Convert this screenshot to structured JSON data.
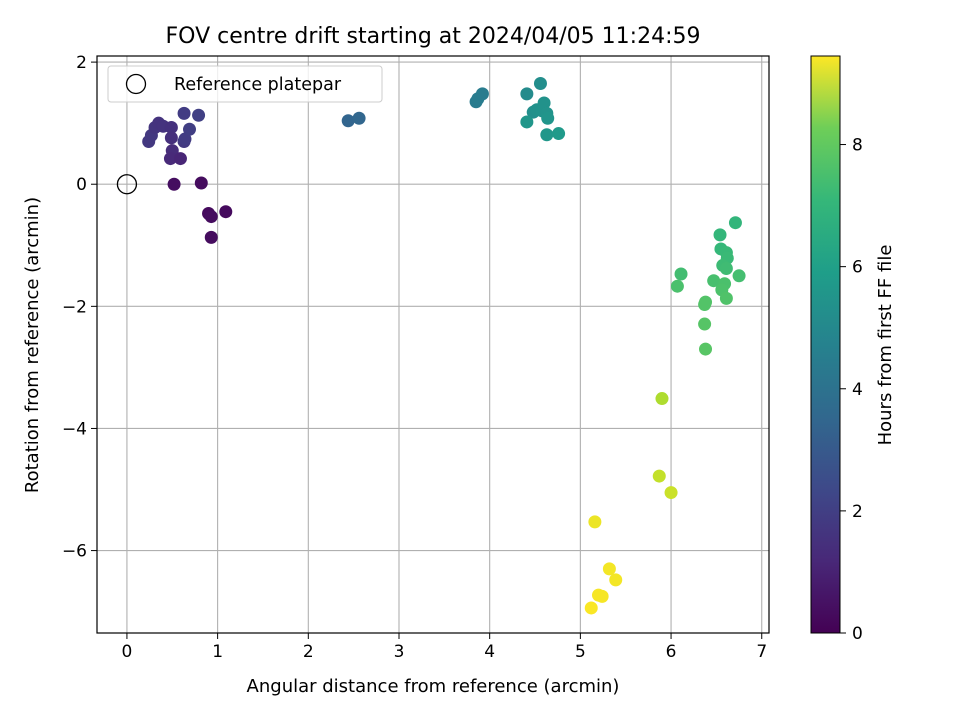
{
  "chart_data": {
    "type": "scatter",
    "title": "FOV centre drift starting at 2024/04/05 11:24:59",
    "xlabel": "Angular distance from reference (arcmin)",
    "ylabel": "Rotation from reference (arcmin)",
    "xlim": [
      -0.33,
      7.08
    ],
    "ylim": [
      -7.35,
      2.1
    ],
    "xticks": [
      0,
      1,
      2,
      3,
      4,
      5,
      6,
      7
    ],
    "xtick_labels": [
      "0",
      "1",
      "2",
      "3",
      "4",
      "5",
      "6",
      "7"
    ],
    "yticks": [
      -6,
      -4,
      -2,
      0,
      2
    ],
    "ytick_labels": [
      "−6",
      "−4",
      "−2",
      "0",
      "2"
    ],
    "grid": true,
    "legend": {
      "placement": "upper-left",
      "entries": [
        "Reference platepar"
      ]
    },
    "reference_point": {
      "x": 0,
      "y": 0
    },
    "colorbar": {
      "label": "Hours from first FF file",
      "colormap": "viridis",
      "range": [
        0,
        9.45
      ],
      "ticks": [
        0,
        2,
        4,
        6,
        8
      ],
      "tick_labels": [
        "0",
        "2",
        "4",
        "6",
        "8"
      ]
    },
    "points": [
      {
        "x": 0.52,
        "y": 0.0,
        "c": 0.35
      },
      {
        "x": 0.82,
        "y": 0.02,
        "c": 0.3
      },
      {
        "x": 1.09,
        "y": -0.45,
        "c": 0.25
      },
      {
        "x": 0.9,
        "y": -0.48,
        "c": 0.25
      },
      {
        "x": 0.93,
        "y": -0.53,
        "c": 0.3
      },
      {
        "x": 0.93,
        "y": -0.87,
        "c": 0.3
      },
      {
        "x": 0.24,
        "y": 0.7,
        "c": 1.55
      },
      {
        "x": 0.27,
        "y": 0.8,
        "c": 1.55
      },
      {
        "x": 0.31,
        "y": 0.93,
        "c": 1.45
      },
      {
        "x": 0.35,
        "y": 1.0,
        "c": 1.4
      },
      {
        "x": 0.4,
        "y": 0.95,
        "c": 1.4
      },
      {
        "x": 0.49,
        "y": 0.93,
        "c": 1.35
      },
      {
        "x": 0.49,
        "y": 0.76,
        "c": 1.3
      },
      {
        "x": 0.5,
        "y": 0.55,
        "c": 1.2
      },
      {
        "x": 0.48,
        "y": 0.42,
        "c": 1.1
      },
      {
        "x": 0.59,
        "y": 0.42,
        "c": 1.0
      },
      {
        "x": 0.63,
        "y": 0.7,
        "c": 1.6
      },
      {
        "x": 0.64,
        "y": 0.74,
        "c": 1.7
      },
      {
        "x": 0.69,
        "y": 0.9,
        "c": 1.75
      },
      {
        "x": 0.63,
        "y": 1.16,
        "c": 1.7
      },
      {
        "x": 0.79,
        "y": 1.13,
        "c": 1.8
      },
      {
        "x": 2.44,
        "y": 1.04,
        "c": 3.05
      },
      {
        "x": 2.56,
        "y": 1.08,
        "c": 3.1
      },
      {
        "x": 3.85,
        "y": 1.35,
        "c": 3.9
      },
      {
        "x": 3.87,
        "y": 1.4,
        "c": 3.95
      },
      {
        "x": 3.92,
        "y": 1.48,
        "c": 3.95
      },
      {
        "x": 4.41,
        "y": 1.48,
        "c": 4.55
      },
      {
        "x": 4.56,
        "y": 1.65,
        "c": 4.65
      },
      {
        "x": 4.48,
        "y": 1.18,
        "c": 4.7
      },
      {
        "x": 4.52,
        "y": 1.22,
        "c": 4.75
      },
      {
        "x": 4.6,
        "y": 1.33,
        "c": 4.8
      },
      {
        "x": 4.58,
        "y": 1.2,
        "c": 4.8
      },
      {
        "x": 4.63,
        "y": 1.16,
        "c": 4.85
      },
      {
        "x": 4.64,
        "y": 1.08,
        "c": 4.9
      },
      {
        "x": 4.41,
        "y": 1.02,
        "c": 4.95
      },
      {
        "x": 4.63,
        "y": 0.81,
        "c": 5.0
      },
      {
        "x": 4.76,
        "y": 0.83,
        "c": 5.1
      },
      {
        "x": 6.71,
        "y": -0.63,
        "c": 6.2
      },
      {
        "x": 6.54,
        "y": -0.83,
        "c": 6.25
      },
      {
        "x": 6.55,
        "y": -1.06,
        "c": 6.3
      },
      {
        "x": 6.61,
        "y": -1.12,
        "c": 6.35
      },
      {
        "x": 6.62,
        "y": -1.21,
        "c": 6.4
      },
      {
        "x": 6.57,
        "y": -1.33,
        "c": 6.45
      },
      {
        "x": 6.61,
        "y": -1.38,
        "c": 6.5
      },
      {
        "x": 6.11,
        "y": -1.47,
        "c": 6.55
      },
      {
        "x": 6.75,
        "y": -1.5,
        "c": 6.6
      },
      {
        "x": 6.47,
        "y": -1.58,
        "c": 6.65
      },
      {
        "x": 6.59,
        "y": -1.63,
        "c": 6.7
      },
      {
        "x": 6.07,
        "y": -1.67,
        "c": 6.7
      },
      {
        "x": 6.56,
        "y": -1.73,
        "c": 6.75
      },
      {
        "x": 6.61,
        "y": -1.87,
        "c": 6.8
      },
      {
        "x": 6.38,
        "y": -1.93,
        "c": 6.85
      },
      {
        "x": 6.37,
        "y": -1.97,
        "c": 6.85
      },
      {
        "x": 6.37,
        "y": -2.29,
        "c": 6.9
      },
      {
        "x": 6.38,
        "y": -2.7,
        "c": 6.95
      },
      {
        "x": 5.9,
        "y": -3.51,
        "c": 8.3
      },
      {
        "x": 5.87,
        "y": -4.78,
        "c": 8.6
      },
      {
        "x": 6.0,
        "y": -5.05,
        "c": 8.7
      },
      {
        "x": 5.16,
        "y": -5.53,
        "c": 9.2
      },
      {
        "x": 5.32,
        "y": -6.3,
        "c": 9.3
      },
      {
        "x": 5.39,
        "y": -6.48,
        "c": 9.3
      },
      {
        "x": 5.2,
        "y": -6.73,
        "c": 9.35
      },
      {
        "x": 5.24,
        "y": -6.75,
        "c": 9.35
      },
      {
        "x": 5.12,
        "y": -6.94,
        "c": 9.4
      }
    ]
  }
}
